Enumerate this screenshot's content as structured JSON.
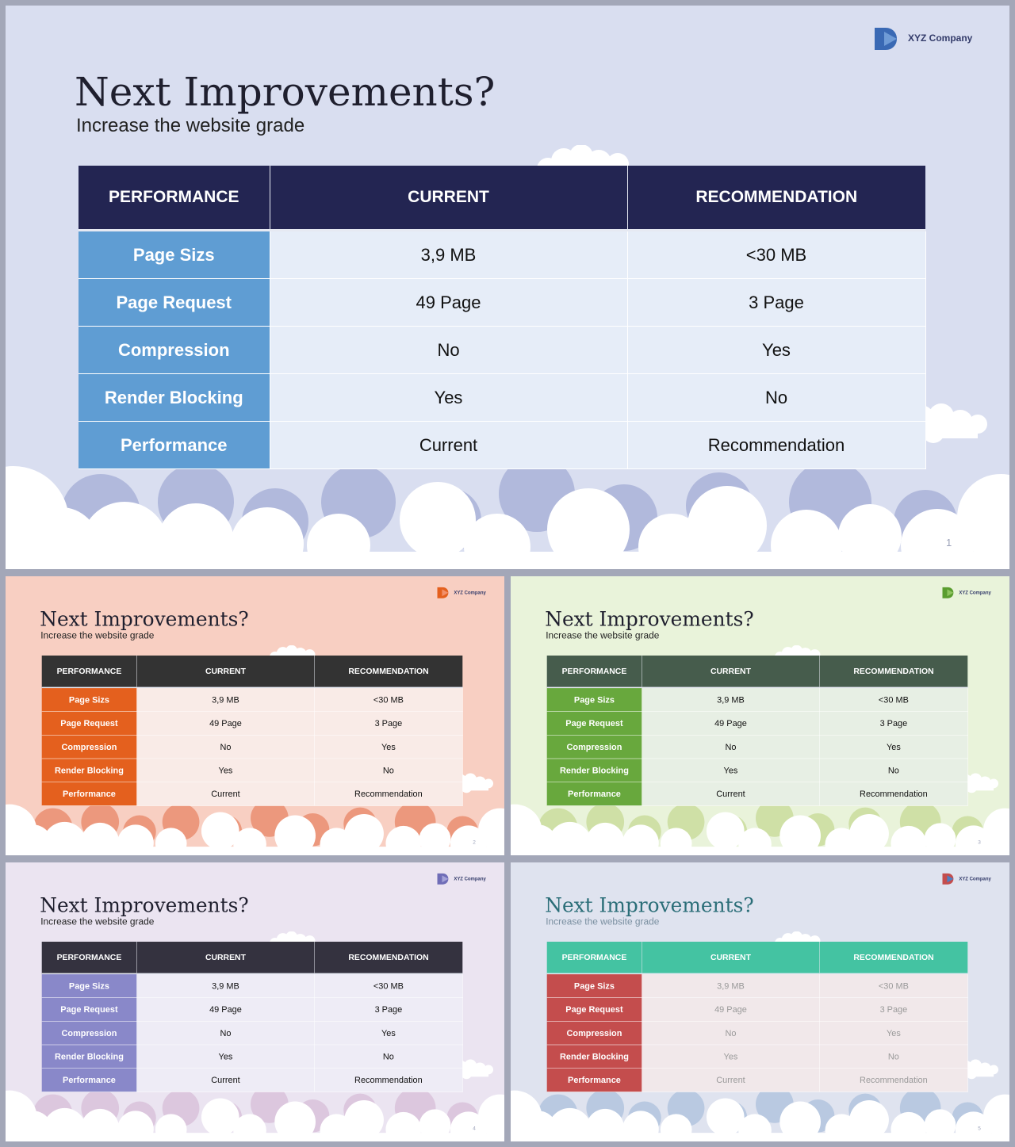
{
  "slides": [
    {
      "company": "XYZ Company",
      "title": "Next Improvements?",
      "subtitle": "Increase the website grade",
      "page": "1",
      "headers": [
        "PERFORMANCE",
        "CURRENT",
        "RECOMMENDATION"
      ],
      "rows": [
        {
          "label": "Page Sizs",
          "current": "3,9 MB",
          "recommendation": "<30 MB"
        },
        {
          "label": "Page Request",
          "current": "49 Page",
          "recommendation": "3 Page"
        },
        {
          "label": "Compression",
          "current": "No",
          "recommendation": "Yes"
        },
        {
          "label": "Render Blocking",
          "current": "Yes",
          "recommendation": "No"
        },
        {
          "label": "Performance",
          "current": "Current",
          "recommendation": "Recommendation"
        }
      ],
      "colors": {
        "bg": "#d9def0",
        "header": "#232552",
        "rowhead": "#5f9dd3",
        "cell": "#e6edf8",
        "back_clouds": "#b1b9dc",
        "title": "#1f1f2e",
        "subtitle": "#222222",
        "cell_text": "#111111",
        "logo_a": "#3a69b4",
        "logo_b": "#6f9bd6"
      }
    },
    {
      "company": "XYZ Company",
      "title": "Next Improvements?",
      "subtitle": "Increase the website grade",
      "page": "2",
      "headers": [
        "PERFORMANCE",
        "CURRENT",
        "RECOMMENDATION"
      ],
      "rows": [
        {
          "label": "Page Sizs",
          "current": "3,9 MB",
          "recommendation": "<30 MB"
        },
        {
          "label": "Page Request",
          "current": "49 Page",
          "recommendation": "3 Page"
        },
        {
          "label": "Compression",
          "current": "No",
          "recommendation": "Yes"
        },
        {
          "label": "Render Blocking",
          "current": "Yes",
          "recommendation": "No"
        },
        {
          "label": "Performance",
          "current": "Current",
          "recommendation": "Recommendation"
        }
      ],
      "colors": {
        "bg": "#f8cfc2",
        "header": "#333333",
        "rowhead": "#e4601e",
        "cell": "#f9ebe7",
        "back_clouds": "#ec987d",
        "title": "#1f1f2e",
        "subtitle": "#222222",
        "cell_text": "#111111",
        "logo_a": "#e4601e",
        "logo_b": "#f2906a"
      }
    },
    {
      "company": "XYZ Company",
      "title": "Next Improvements?",
      "subtitle": "Increase the website grade",
      "page": "3",
      "headers": [
        "PERFORMANCE",
        "CURRENT",
        "RECOMMENDATION"
      ],
      "rows": [
        {
          "label": "Page Sizs",
          "current": "3,9 MB",
          "recommendation": "<30 MB"
        },
        {
          "label": "Page Request",
          "current": "49 Page",
          "recommendation": "3 Page"
        },
        {
          "label": "Compression",
          "current": "No",
          "recommendation": "Yes"
        },
        {
          "label": "Render Blocking",
          "current": "Yes",
          "recommendation": "No"
        },
        {
          "label": "Performance",
          "current": "Current",
          "recommendation": "Recommendation"
        }
      ],
      "colors": {
        "bg": "#e9f3da",
        "header": "#465c4c",
        "rowhead": "#68a83d",
        "cell": "#e7efe4",
        "back_clouds": "#cfe0a6",
        "title": "#1f1f2e",
        "subtitle": "#222222",
        "cell_text": "#111111",
        "logo_a": "#5a9d2f",
        "logo_b": "#8fc45f"
      }
    },
    {
      "company": "XYZ Company",
      "title": "Next Improvements?",
      "subtitle": "Increase the website grade",
      "page": "4",
      "headers": [
        "PERFORMANCE",
        "CURRENT",
        "RECOMMENDATION"
      ],
      "rows": [
        {
          "label": "Page Sizs",
          "current": "3,9 MB",
          "recommendation": "<30 MB"
        },
        {
          "label": "Page Request",
          "current": "49 Page",
          "recommendation": "3 Page"
        },
        {
          "label": "Compression",
          "current": "No",
          "recommendation": "Yes"
        },
        {
          "label": "Render Blocking",
          "current": "Yes",
          "recommendation": "No"
        },
        {
          "label": "Performance",
          "current": "Current",
          "recommendation": "Recommendation"
        }
      ],
      "colors": {
        "bg": "#ebe4f1",
        "header": "#34323f",
        "rowhead": "#8988c9",
        "cell": "#eeecf6",
        "back_clouds": "#dcc7de",
        "title": "#1f1f2e",
        "subtitle": "#222222",
        "cell_text": "#111111",
        "logo_a": "#6f6db7",
        "logo_b": "#a5a3d8"
      }
    },
    {
      "company": "XYZ Company",
      "title": "Next Improvements?",
      "subtitle": "Increase the website grade",
      "page": "5",
      "headers": [
        "PERFORMANCE",
        "CURRENT",
        "RECOMMENDATION"
      ],
      "rows": [
        {
          "label": "Page Sizs",
          "current": "3,9 MB",
          "recommendation": "<30 MB"
        },
        {
          "label": "Page Request",
          "current": "49 Page",
          "recommendation": "3 Page"
        },
        {
          "label": "Compression",
          "current": "No",
          "recommendation": "Yes"
        },
        {
          "label": "Render Blocking",
          "current": "Yes",
          "recommendation": "No"
        },
        {
          "label": "Performance",
          "current": "Current",
          "recommendation": "Recommendation"
        }
      ],
      "colors": {
        "bg": "#dfe3ef",
        "header": "#44c3a2",
        "rowhead": "#c44d4d",
        "cell": "#f1e8ea",
        "back_clouds": "#b9c9e1",
        "title": "#2b6e78",
        "subtitle": "#7a8fa0",
        "cell_text": "#9a9a9a",
        "logo_a": "#c44d4d",
        "logo_b": "#4d7fc4"
      }
    }
  ]
}
